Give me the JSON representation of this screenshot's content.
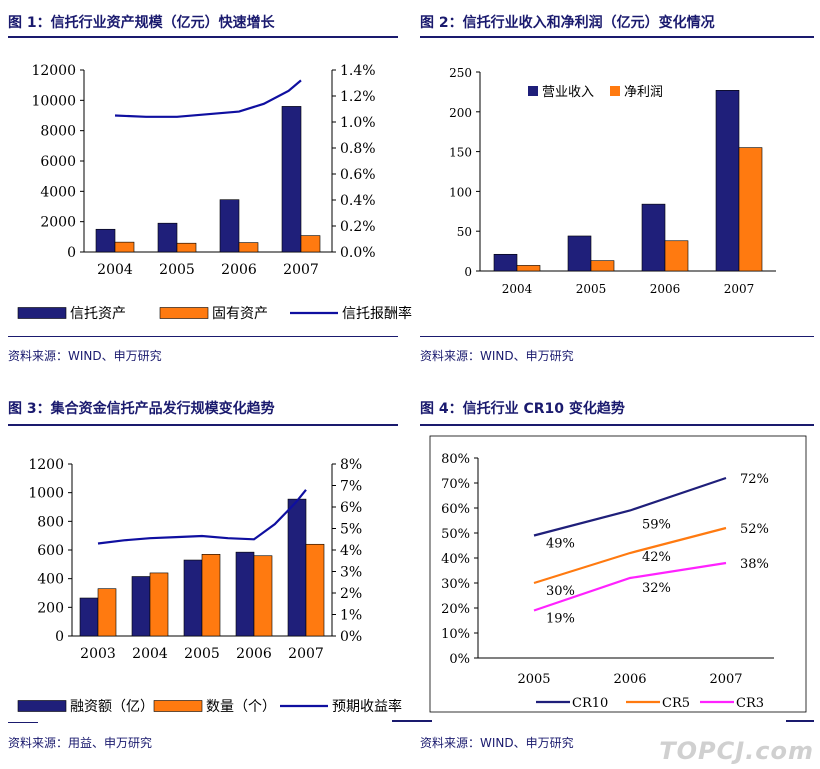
{
  "panels": [
    {
      "title": "图 1：信托行业资产规模（亿元）快速增长",
      "source": "资料来源：WIND、申万研究"
    },
    {
      "title": "图 2：信托行业收入和净利润（亿元）变化情况",
      "source": "资料来源：WIND、申万研究"
    },
    {
      "title": "图 3：集合资金信托产品发行规模变化趋势",
      "source": "资料来源：用益、申万研究"
    },
    {
      "title": "图 4：信托行业 CR10 变化趋势",
      "source": "资料来源：WIND、申万研究"
    }
  ],
  "watermark": "TOPCJ.com",
  "colors": {
    "navy": "#1f1f7a",
    "orange": "#ff7a10",
    "line_blue": "#0f0fa0",
    "magenta": "#ff22ff",
    "title": "#1a1a6e"
  },
  "chart_data": [
    {
      "type": "bar",
      "categories": [
        "2004",
        "2005",
        "2006",
        "2007"
      ],
      "series": [
        {
          "name": "信托资产",
          "values": [
            1500,
            1900,
            3450,
            9600
          ],
          "axis": "left"
        },
        {
          "name": "固有资产",
          "values": [
            650,
            580,
            620,
            1080
          ],
          "axis": "left"
        },
        {
          "name": "信托报酬率",
          "type": "line",
          "axis": "right",
          "x": [
            2004,
            2004.5,
            2005,
            2005.5,
            2006,
            2006.4,
            2006.8,
            2007
          ],
          "values": [
            1.05,
            1.04,
            1.04,
            1.06,
            1.08,
            1.14,
            1.24,
            1.32
          ]
        }
      ],
      "ylim": [
        0,
        12000
      ],
      "yticks": [
        "0",
        "2000",
        "4000",
        "6000",
        "8000",
        "10000",
        "12000"
      ],
      "y2lim": [
        0,
        1.4
      ],
      "y2ticks": [
        "0.0%",
        "0.2%",
        "0.4%",
        "0.6%",
        "0.8%",
        "1.0%",
        "1.2%",
        "1.4%"
      ],
      "legend": "bottom"
    },
    {
      "type": "bar",
      "categories": [
        "2004",
        "2005",
        "2006",
        "2007"
      ],
      "series": [
        {
          "name": "营业收入",
          "values": [
            21,
            44,
            84,
            227
          ]
        },
        {
          "name": "净利润",
          "values": [
            7,
            13,
            38,
            155
          ]
        }
      ],
      "ylim": [
        0,
        250
      ],
      "yticks": [
        "0",
        "50",
        "100",
        "150",
        "200",
        "250"
      ],
      "legend": "top-left"
    },
    {
      "type": "bar",
      "categories": [
        "2003",
        "2004",
        "2005",
        "2006",
        "2007"
      ],
      "series": [
        {
          "name": "融资额（亿）",
          "values": [
            265,
            415,
            530,
            585,
            955
          ],
          "axis": "left"
        },
        {
          "name": "数量（个）",
          "values": [
            330,
            440,
            570,
            560,
            640
          ],
          "axis": "left"
        },
        {
          "name": "预期收益率",
          "type": "line",
          "axis": "right",
          "x": [
            2003,
            2003.5,
            2004,
            2004.5,
            2005,
            2005.5,
            2006,
            2006.4,
            2006.8,
            2007
          ],
          "values": [
            4.3,
            4.45,
            4.55,
            4.6,
            4.65,
            4.55,
            4.5,
            5.2,
            6.2,
            6.8
          ]
        }
      ],
      "ylim": [
        0,
        1200
      ],
      "yticks": [
        "0",
        "200",
        "400",
        "600",
        "800",
        "1000",
        "1200"
      ],
      "y2lim": [
        0,
        8
      ],
      "y2ticks": [
        "0%",
        "1%",
        "2%",
        "3%",
        "4%",
        "5%",
        "6%",
        "7%",
        "8%"
      ],
      "legend": "bottom"
    },
    {
      "type": "line",
      "categories": [
        "2005",
        "2006",
        "2007"
      ],
      "series": [
        {
          "name": "CR10",
          "values": [
            49,
            59,
            72
          ],
          "labels": [
            "49%",
            "59%",
            "72%"
          ]
        },
        {
          "name": "CR5",
          "values": [
            30,
            42,
            52
          ],
          "labels": [
            "30%",
            "42%",
            "52%"
          ]
        },
        {
          "name": "CR3",
          "values": [
            19,
            32,
            38
          ],
          "labels": [
            "19%",
            "32%",
            "38%"
          ]
        }
      ],
      "ylim": [
        0,
        80
      ],
      "yticks": [
        "0%",
        "10%",
        "20%",
        "30%",
        "40%",
        "50%",
        "60%",
        "70%",
        "80%"
      ],
      "legend": "bottom"
    }
  ]
}
